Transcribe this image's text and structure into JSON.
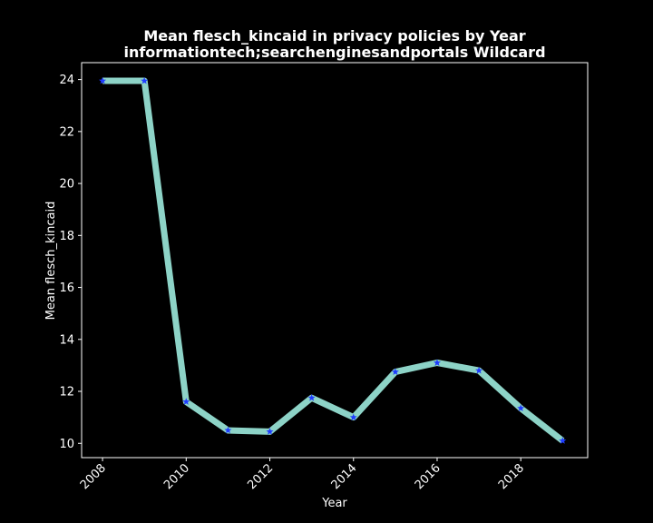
{
  "chart_data": {
    "type": "line",
    "title_line1": "Mean flesch_kincaid in privacy policies by Year",
    "title_line2": "informationtech;searchenginesandportals Wildcard",
    "xlabel": "Year",
    "ylabel": "Mean flesch_kincaid",
    "x": [
      2008,
      2009,
      2010,
      2011,
      2012,
      2013,
      2014,
      2015,
      2016,
      2017,
      2018,
      2019
    ],
    "y": [
      23.95,
      23.95,
      11.6,
      10.5,
      10.45,
      11.75,
      11.0,
      12.75,
      13.1,
      12.8,
      11.35,
      10.1
    ],
    "xlim": [
      2007.5,
      2019.6
    ],
    "ylim": [
      9.45,
      24.65
    ],
    "xticks": [
      2008,
      2010,
      2012,
      2014,
      2016,
      2018
    ],
    "yticks": [
      10,
      12,
      14,
      16,
      18,
      20,
      22,
      24
    ],
    "line_color": "#8dd3c7",
    "marker_color": "#1f3cff",
    "marker": "star",
    "background": "#000000",
    "grid": false,
    "legend": "none"
  }
}
